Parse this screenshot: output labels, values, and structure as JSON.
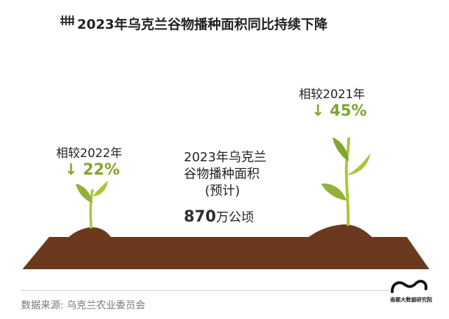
{
  "title": "2023年乌克兰谷物播种面积同比持续下降",
  "icons": {
    "title": "wheat-icon",
    "logo": "brand-logo"
  },
  "comparisons": [
    {
      "label": "相较2022年",
      "change": "↓ 22%"
    },
    {
      "label": "相较2021年",
      "change": "↓ 45%"
    }
  ],
  "center": {
    "line1": "2023年乌克兰",
    "line2": "谷物播种面积",
    "line3": "(预计)",
    "value": "870",
    "unit": "万公顷"
  },
  "source": "数据来源: 乌克兰农业委员会",
  "logo_text": "南都大数据研究院",
  "colors": {
    "soil": "#6b3a1e",
    "soil_shadow": "#4a2814",
    "plant_light": "#a8c63a",
    "plant_dark": "#7fa62d",
    "accent": "#7fa62d"
  }
}
